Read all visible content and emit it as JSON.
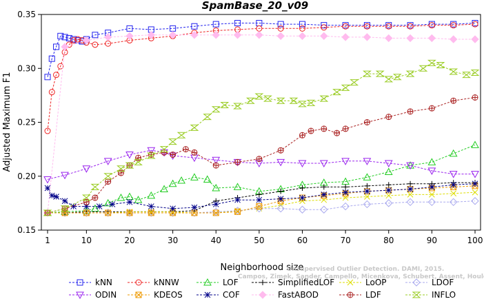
{
  "chart_data": {
    "type": "line",
    "title": "SpamBase_20_v09",
    "xlabel": "Neighborhood size",
    "ylabel": "Adjusted Maximum F1",
    "xlim": [
      1,
      100
    ],
    "ylim": [
      0.15,
      0.35
    ],
    "xticks": [
      1,
      10,
      20,
      30,
      40,
      50,
      60,
      70,
      80,
      90,
      100
    ],
    "yticks": [
      0.15,
      0.2,
      0.25,
      0.3,
      0.35
    ],
    "ytick_labels": [
      "0.15",
      "0.20",
      "0.25",
      "0.30",
      "0.35"
    ],
    "grid": false,
    "legend_position": "bottom",
    "watermark_lines": [
      "Unsupervised Outlier Detection. DAMI, 2015.",
      "Campos, Zimek, Sander, Campello, Micenkova, Schubert, Assent, Houle"
    ],
    "series": [
      {
        "name": "kNN",
        "color": "#2222ee",
        "marker": "square",
        "x": [
          1,
          2,
          3,
          4,
          5,
          6,
          7,
          8,
          9,
          10,
          12,
          15,
          20,
          25,
          30,
          35,
          40,
          45,
          50,
          55,
          60,
          65,
          70,
          75,
          80,
          85,
          90,
          95,
          100
        ],
        "y": [
          0.292,
          0.309,
          0.32,
          0.33,
          0.329,
          0.328,
          0.327,
          0.326,
          0.325,
          0.327,
          0.331,
          0.333,
          0.337,
          0.336,
          0.337,
          0.339,
          0.341,
          0.342,
          0.342,
          0.341,
          0.341,
          0.34,
          0.34,
          0.34,
          0.34,
          0.34,
          0.341,
          0.341,
          0.342
        ]
      },
      {
        "name": "kNNW",
        "color": "#ee2222",
        "marker": "circle",
        "x": [
          1,
          2,
          3,
          4,
          5,
          6,
          7,
          8,
          9,
          10,
          12,
          15,
          20,
          25,
          30,
          35,
          40,
          45,
          50,
          55,
          60,
          65,
          70,
          75,
          80,
          85,
          90,
          95,
          100
        ],
        "y": [
          0.242,
          0.278,
          0.294,
          0.302,
          0.315,
          0.322,
          0.326,
          0.327,
          0.326,
          0.324,
          0.322,
          0.323,
          0.326,
          0.328,
          0.33,
          0.333,
          0.335,
          0.336,
          0.337,
          0.337,
          0.337,
          0.338,
          0.339,
          0.339,
          0.339,
          0.339,
          0.34,
          0.34,
          0.341
        ]
      },
      {
        "name": "LOF",
        "color": "#22cc22",
        "marker": "triangle-up",
        "x": [
          1,
          5,
          10,
          12,
          15,
          18,
          20,
          22,
          25,
          28,
          30,
          32,
          35,
          38,
          40,
          45,
          50,
          55,
          60,
          65,
          70,
          75,
          80,
          85,
          90,
          95,
          100
        ],
        "y": [
          0.166,
          0.167,
          0.168,
          0.17,
          0.175,
          0.18,
          0.181,
          0.178,
          0.182,
          0.188,
          0.193,
          0.196,
          0.199,
          0.197,
          0.189,
          0.19,
          0.186,
          0.188,
          0.192,
          0.194,
          0.195,
          0.199,
          0.204,
          0.21,
          0.213,
          0.221,
          0.229
        ]
      },
      {
        "name": "SimplifiedLOF",
        "color": "#000000",
        "marker": "plus",
        "x": [
          1,
          5,
          10,
          15,
          20,
          25,
          30,
          35,
          40,
          45,
          50,
          55,
          60,
          65,
          70,
          75,
          80,
          85,
          90,
          95,
          100
        ],
        "y": [
          0.166,
          0.166,
          0.167,
          0.167,
          0.167,
          0.167,
          0.167,
          0.168,
          0.177,
          0.18,
          0.183,
          0.186,
          0.189,
          0.19,
          0.19,
          0.191,
          0.192,
          0.193,
          0.193,
          0.194,
          0.194
        ]
      },
      {
        "name": "LoOP",
        "color": "#dddd00",
        "marker": "x",
        "x": [
          1,
          5,
          10,
          15,
          20,
          25,
          30,
          35,
          40,
          45,
          50,
          55,
          60,
          65,
          70,
          75,
          80,
          85,
          90,
          95,
          100
        ],
        "y": [
          0.166,
          0.166,
          0.166,
          0.166,
          0.167,
          0.167,
          0.167,
          0.166,
          0.166,
          0.168,
          0.17,
          0.173,
          0.177,
          0.178,
          0.18,
          0.181,
          0.182,
          0.183,
          0.183,
          0.184,
          0.185
        ]
      },
      {
        "name": "LDOF",
        "color": "#a9a9ee",
        "marker": "diamond",
        "x": [
          1,
          5,
          10,
          15,
          20,
          25,
          30,
          35,
          40,
          45,
          50,
          55,
          60,
          65,
          70,
          75,
          80,
          85,
          90,
          95,
          100
        ],
        "y": [
          0.166,
          0.166,
          0.166,
          0.166,
          0.166,
          0.166,
          0.166,
          0.166,
          0.167,
          0.168,
          0.17,
          0.17,
          0.169,
          0.169,
          0.172,
          0.174,
          0.175,
          0.176,
          0.176,
          0.176,
          0.177
        ]
      },
      {
        "name": "ODIN",
        "color": "#9922ee",
        "marker": "triangle-down",
        "x": [
          1,
          5,
          10,
          15,
          20,
          25,
          28,
          30,
          35,
          40,
          45,
          50,
          55,
          60,
          65,
          70,
          75,
          80,
          85,
          90,
          95,
          100
        ],
        "y": [
          0.197,
          0.201,
          0.207,
          0.214,
          0.22,
          0.224,
          0.222,
          0.219,
          0.217,
          0.215,
          0.213,
          0.212,
          0.213,
          0.212,
          0.212,
          0.214,
          0.214,
          0.212,
          0.21,
          0.205,
          0.202,
          0.202
        ]
      },
      {
        "name": "KDEOS",
        "color": "#ee9900",
        "marker": "square-x",
        "x": [
          1,
          5,
          10,
          15,
          20,
          25,
          30,
          35,
          40,
          45,
          50,
          55,
          60,
          65,
          70,
          75,
          80,
          85,
          90,
          95,
          100
        ],
        "y": [
          0.166,
          0.166,
          0.166,
          0.166,
          0.166,
          0.166,
          0.166,
          0.166,
          0.166,
          0.167,
          0.172,
          0.177,
          0.18,
          0.182,
          0.184,
          0.186,
          0.187,
          0.188,
          0.189,
          0.19,
          0.191
        ]
      },
      {
        "name": "COF",
        "color": "#000088",
        "marker": "star",
        "x": [
          1,
          2,
          3,
          5,
          7,
          10,
          13,
          16,
          20,
          25,
          30,
          35,
          40,
          45,
          50,
          55,
          60,
          65,
          70,
          75,
          80,
          85,
          90,
          95,
          100
        ],
        "y": [
          0.189,
          0.182,
          0.181,
          0.177,
          0.172,
          0.172,
          0.172,
          0.174,
          0.176,
          0.172,
          0.17,
          0.171,
          0.174,
          0.178,
          0.178,
          0.179,
          0.18,
          0.183,
          0.185,
          0.186,
          0.187,
          0.188,
          0.19,
          0.192,
          0.193
        ]
      },
      {
        "name": "FastABOD",
        "color": "#ffbbee",
        "marker": "diamond-filled",
        "x": [
          1,
          5,
          10,
          15,
          20,
          25,
          30,
          35,
          40,
          45,
          50,
          55,
          60,
          65,
          70,
          75,
          80,
          85,
          90,
          95,
          100
        ],
        "y": [
          0.166,
          0.32,
          0.326,
          0.329,
          0.33,
          0.331,
          0.331,
          0.331,
          0.331,
          0.331,
          0.331,
          0.33,
          0.33,
          0.33,
          0.329,
          0.329,
          0.328,
          0.328,
          0.328,
          0.327,
          0.327
        ]
      },
      {
        "name": "LDF",
        "color": "#aa2222",
        "marker": "circle-plus",
        "x": [
          1,
          5,
          10,
          12,
          15,
          18,
          20,
          22,
          25,
          28,
          30,
          33,
          35,
          40,
          45,
          50,
          55,
          60,
          62,
          65,
          68,
          70,
          75,
          80,
          85,
          90,
          95,
          100
        ],
        "y": [
          0.166,
          0.17,
          0.176,
          0.18,
          0.195,
          0.203,
          0.21,
          0.217,
          0.22,
          0.222,
          0.22,
          0.225,
          0.222,
          0.21,
          0.213,
          0.216,
          0.224,
          0.238,
          0.242,
          0.244,
          0.24,
          0.244,
          0.25,
          0.255,
          0.26,
          0.263,
          0.27,
          0.273
        ]
      },
      {
        "name": "INFLO",
        "color": "#99cc22",
        "marker": "hourglass",
        "x": [
          1,
          5,
          10,
          12,
          15,
          18,
          20,
          22,
          25,
          28,
          30,
          32,
          35,
          38,
          40,
          42,
          45,
          48,
          50,
          52,
          55,
          58,
          60,
          62,
          65,
          68,
          70,
          72,
          75,
          78,
          80,
          82,
          85,
          88,
          90,
          92,
          95,
          98,
          100
        ],
        "y": [
          0.166,
          0.17,
          0.18,
          0.19,
          0.2,
          0.207,
          0.21,
          0.213,
          0.219,
          0.225,
          0.232,
          0.238,
          0.245,
          0.255,
          0.262,
          0.266,
          0.265,
          0.27,
          0.274,
          0.272,
          0.27,
          0.27,
          0.267,
          0.268,
          0.272,
          0.278,
          0.282,
          0.287,
          0.295,
          0.295,
          0.29,
          0.292,
          0.295,
          0.3,
          0.305,
          0.303,
          0.297,
          0.294,
          0.296
        ]
      }
    ]
  }
}
